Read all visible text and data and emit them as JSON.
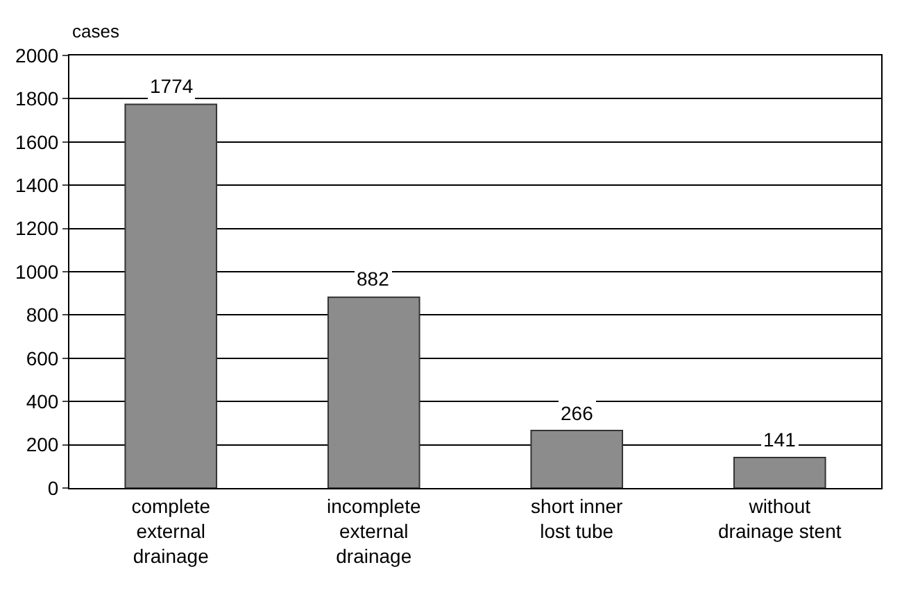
{
  "chart_data": {
    "type": "bar",
    "ylabel": "cases",
    "categories": [
      "complete\nexternal\ndrainage",
      "incomplete\nexternal\ndrainage",
      "short inner\nlost tube",
      "without\ndrainage stent"
    ],
    "values": [
      1774,
      882,
      266,
      141
    ],
    "color": "#8c8c8c",
    "ylim": [
      0,
      2000
    ],
    "yticks": [
      0,
      200,
      400,
      600,
      800,
      1000,
      1200,
      1400,
      1600,
      1800,
      2000
    ],
    "grid": "y",
    "data_labels": true
  }
}
